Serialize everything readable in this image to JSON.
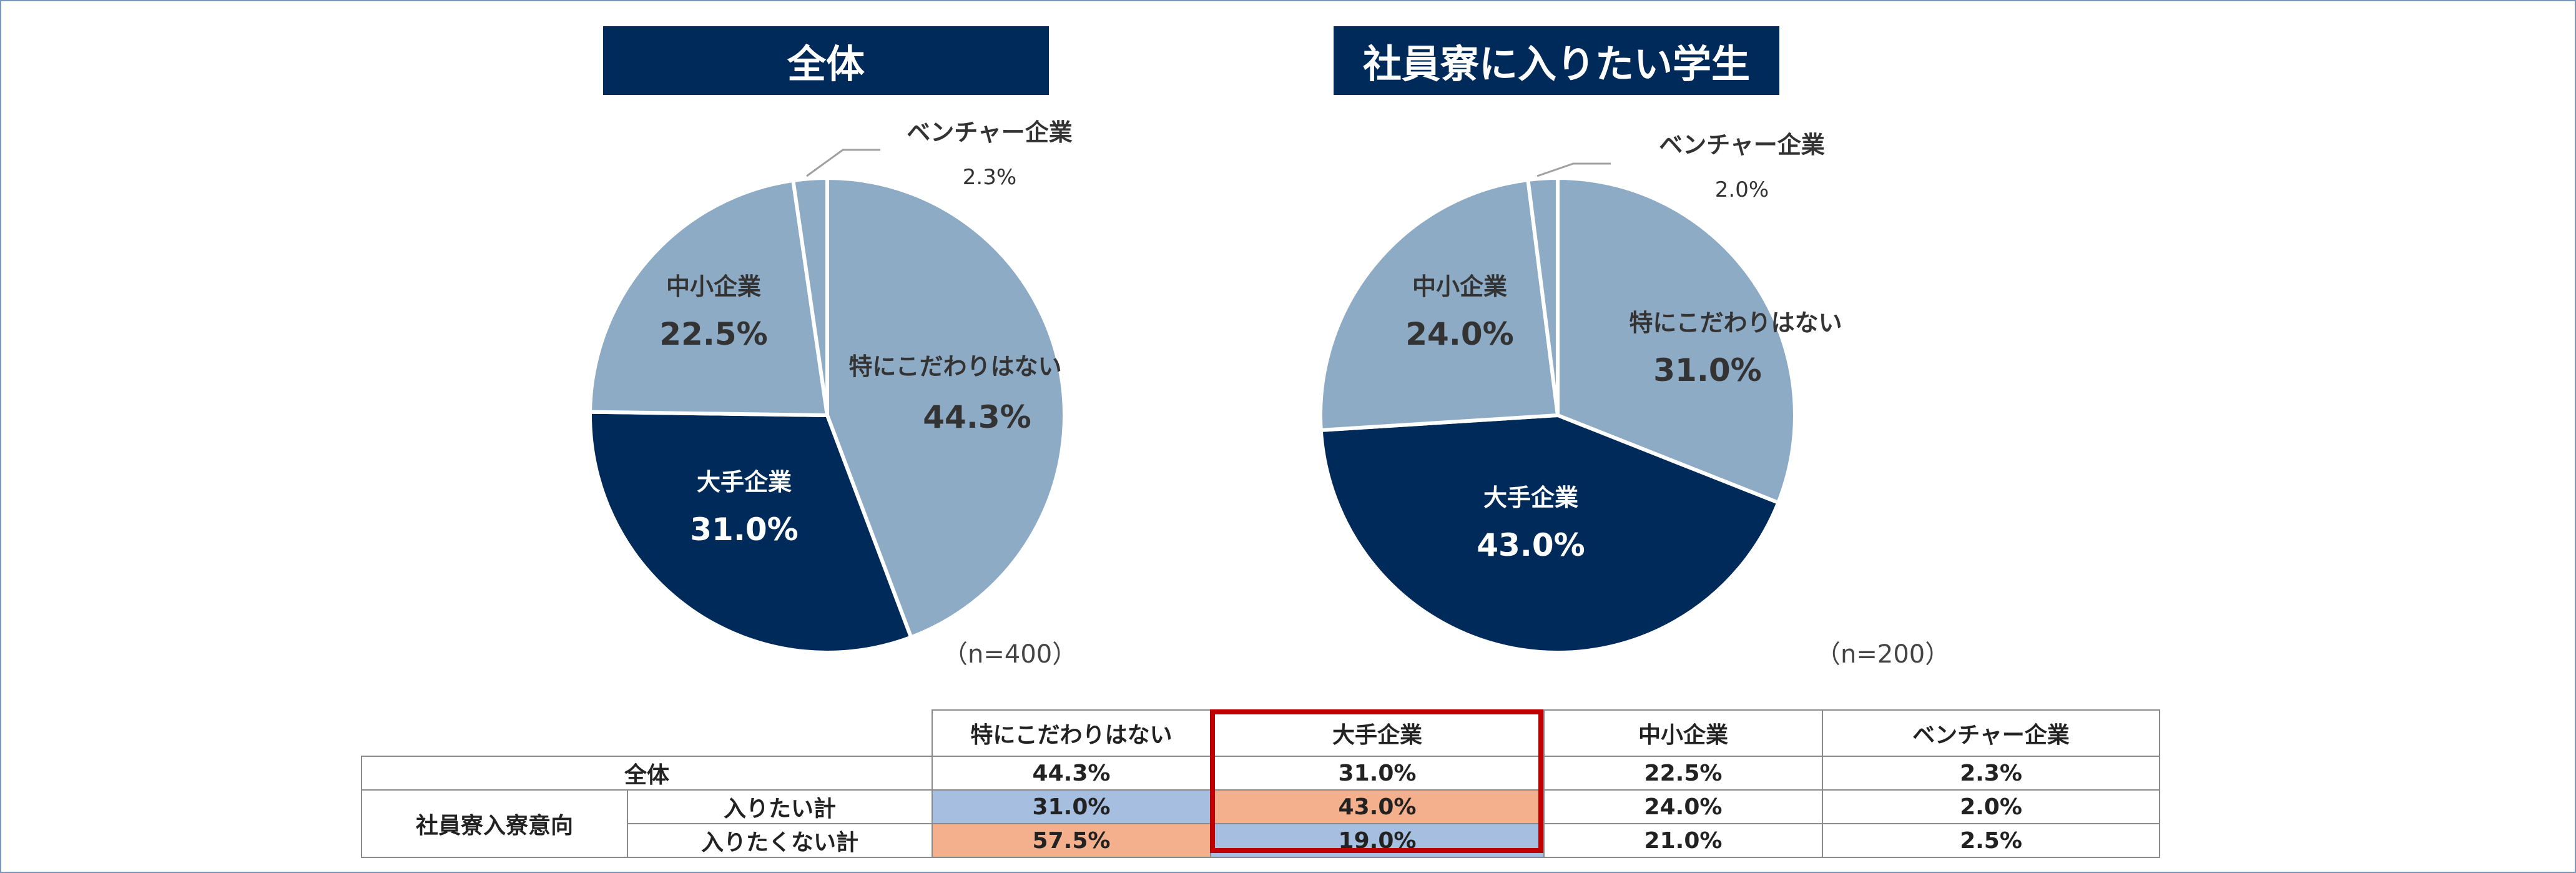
{
  "charts": {
    "left_title": "全体",
    "right_title": "社員寮に入りたい学生",
    "left_n": "（n=400）",
    "right_n": "（n=200）"
  },
  "colors": {
    "navy": "#002a5a",
    "light": "#8eabc6",
    "blue_hl": "#a6bfe0",
    "orange_hl": "#f4b08c",
    "red_frame": "#c00000"
  },
  "chart_data": [
    {
      "type": "pie",
      "title": "全体",
      "labels": [
        "特にこだわりはない",
        "大手企業",
        "中小企業",
        "ベンチャー企業"
      ],
      "values": [
        44.3,
        31.0,
        22.5,
        2.3
      ],
      "value_labels": [
        "44.3%",
        "31.0%",
        "22.5%",
        "2.3%"
      ]
    },
    {
      "type": "pie",
      "title": "社員寮に入りたい学生",
      "labels": [
        "特にこだわりはない",
        "大手企業",
        "中小企業",
        "ベンチャー企業"
      ],
      "values": [
        31.0,
        43.0,
        24.0,
        2.0
      ],
      "value_labels": [
        "31.0%",
        "43.0%",
        "24.0%",
        "2.0%"
      ]
    }
  ],
  "table": {
    "headers": [
      "特にこだわりはない",
      "大手企業",
      "中小企業",
      "ベンチャー企業"
    ],
    "row_all": {
      "label": "全体",
      "values": [
        "44.3%",
        "31.0%",
        "22.5%",
        "2.3%"
      ]
    },
    "group_label": "社員寮入寮意向",
    "row_want": {
      "label": "入りたい計",
      "values": [
        "31.0%",
        "43.0%",
        "24.0%",
        "2.0%"
      ]
    },
    "row_not": {
      "label": "入りたくない計",
      "values": [
        "57.5%",
        "19.0%",
        "21.0%",
        "2.5%"
      ]
    }
  }
}
